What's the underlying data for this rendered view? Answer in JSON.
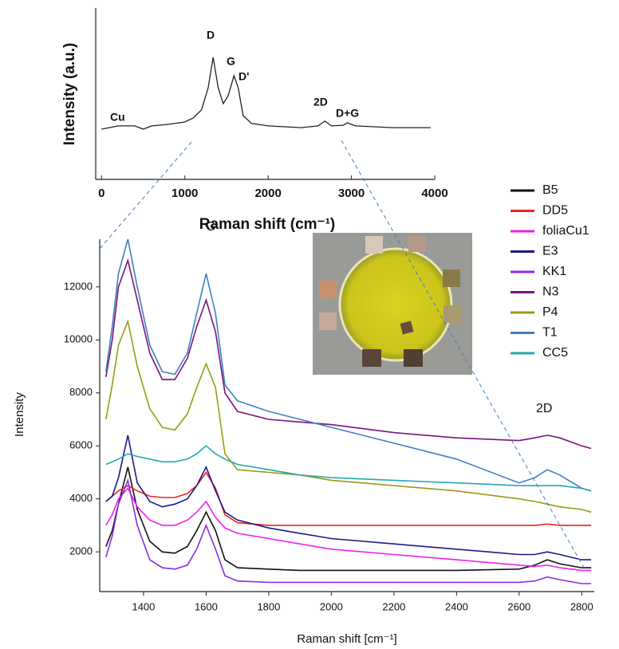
{
  "chart_data": [
    {
      "type": "line",
      "x_label": "Raman shift (cm⁻¹)",
      "y_label": "Intensity (a.u.)",
      "x": [
        0,
        200,
        400,
        500,
        600,
        800,
        1000,
        1100,
        1200,
        1280,
        1340,
        1400,
        1460,
        1520,
        1590,
        1640,
        1700,
        1800,
        2000,
        2400,
        2600,
        2680,
        2760,
        2900,
        2950,
        3050,
        3500,
        3950
      ],
      "values": [
        29.3,
        31.2,
        31.2,
        29.3,
        31.2,
        32.1,
        33.5,
        35.8,
        40.5,
        53.5,
        71.2,
        53.5,
        44.2,
        48.8,
        60.5,
        53.5,
        37.2,
        32.6,
        31.2,
        30.2,
        31.2,
        34,
        31.2,
        31.6,
        33,
        31.2,
        30.2,
        30.2
      ],
      "color": "#222222",
      "xlim": [
        -70,
        4000
      ],
      "xticks": [
        0,
        1000,
        2000,
        3000,
        4000
      ],
      "ylim": [
        0,
        100
      ],
      "annotations": [
        "Cu",
        "D",
        "G",
        "D'",
        "2D",
        "D+G"
      ]
    },
    {
      "type": "line",
      "x_label": "Raman shift [cm⁻¹]",
      "y_label": "Intensity",
      "x": [
        1280,
        1300,
        1320,
        1350,
        1380,
        1420,
        1460,
        1500,
        1540,
        1570,
        1600,
        1630,
        1660,
        1700,
        1800,
        1900,
        2000,
        2200,
        2400,
        2600,
        2650,
        2690,
        2730,
        2800,
        2830
      ],
      "series": [
        {
          "name": "B5",
          "color": "#111111",
          "values": [
            2200,
            2800,
            3800,
            5200,
            3600,
            2400,
            2000,
            1950,
            2200,
            2800,
            3500,
            2800,
            1700,
            1400,
            1350,
            1300,
            1300,
            1300,
            1300,
            1350,
            1500,
            1700,
            1550,
            1400,
            1400
          ]
        },
        {
          "name": "DD5",
          "color": "#e8251d",
          "values": [
            3900,
            4100,
            4300,
            4500,
            4300,
            4100,
            4050,
            4050,
            4200,
            4500,
            5000,
            4400,
            3400,
            3100,
            3000,
            3000,
            3000,
            3000,
            3000,
            3000,
            3000,
            3050,
            3000,
            3000,
            3000
          ]
        },
        {
          "name": "foliaCu1",
          "color": "#f01ef0",
          "values": [
            3000,
            3400,
            4000,
            4400,
            3700,
            3200,
            3000,
            3000,
            3200,
            3500,
            3900,
            3300,
            2900,
            2700,
            2500,
            2300,
            2100,
            1900,
            1700,
            1500,
            1450,
            1500,
            1400,
            1300,
            1300
          ]
        },
        {
          "name": "E3",
          "color": "#1a1a8c",
          "values": [
            3900,
            4100,
            4800,
            6400,
            4600,
            3900,
            3700,
            3800,
            4000,
            4500,
            5200,
            4300,
            3500,
            3200,
            2900,
            2700,
            2500,
            2300,
            2100,
            1900,
            1900,
            2000,
            1900,
            1700,
            1700
          ]
        },
        {
          "name": "KK1",
          "color": "#8a2be8",
          "values": [
            1800,
            2600,
            3800,
            4700,
            3000,
            1700,
            1400,
            1350,
            1500,
            2100,
            3000,
            2100,
            1100,
            900,
            850,
            850,
            850,
            850,
            850,
            850,
            900,
            1050,
            950,
            800,
            800
          ]
        },
        {
          "name": "N3",
          "color": "#7a1280",
          "values": [
            8600,
            10000,
            12000,
            13000,
            11500,
            9500,
            8500,
            8500,
            9300,
            10500,
            11500,
            10300,
            8000,
            7300,
            7000,
            6900,
            6800,
            6500,
            6300,
            6200,
            6300,
            6400,
            6300,
            6000,
            5900
          ]
        },
        {
          "name": "P4",
          "color": "#9a9a14",
          "values": [
            7000,
            8300,
            9800,
            10700,
            9000,
            7400,
            6700,
            6600,
            7200,
            8200,
            9100,
            8200,
            5700,
            5100,
            5000,
            4900,
            4700,
            4500,
            4300,
            4000,
            3900,
            3800,
            3700,
            3600,
            3500
          ]
        },
        {
          "name": "T1",
          "color": "#3f7fc0",
          "values": [
            8800,
            10500,
            12500,
            13800,
            12000,
            9800,
            8800,
            8700,
            9500,
            11000,
            12500,
            11000,
            8300,
            7700,
            7300,
            7000,
            6700,
            6100,
            5500,
            4600,
            4800,
            5100,
            4900,
            4400,
            4300
          ]
        },
        {
          "name": "CC5",
          "color": "#22a8b0",
          "values": [
            5300,
            5400,
            5500,
            5700,
            5600,
            5500,
            5400,
            5400,
            5500,
            5700,
            6000,
            5700,
            5500,
            5300,
            5100,
            4900,
            4800,
            4700,
            4600,
            4500,
            4500,
            4500,
            4500,
            4400,
            4300
          ]
        }
      ],
      "xlim": [
        1260,
        2840
      ],
      "xticks": [
        1400,
        1600,
        1800,
        2000,
        2200,
        2400,
        2600,
        2800
      ],
      "ylim": [
        500,
        13800
      ],
      "yticks": [
        2000,
        4000,
        6000,
        8000,
        10000,
        12000
      ],
      "legend": "right",
      "annotations": [
        "G",
        "2D"
      ]
    }
  ]
}
